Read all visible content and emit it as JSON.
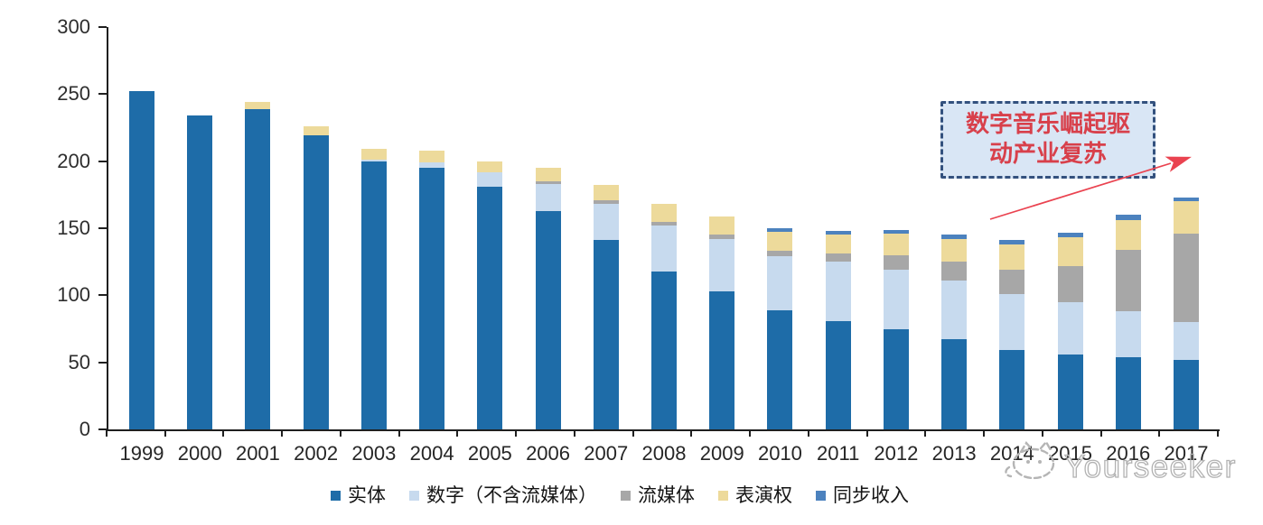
{
  "chart_data": {
    "type": "bar",
    "subtype": "stacked-vertical",
    "title": "",
    "xlabel": "",
    "ylabel": "",
    "ylim": [
      0,
      300
    ],
    "yticks": [
      0,
      50,
      100,
      150,
      200,
      250,
      300
    ],
    "grid": false,
    "legend_position": "bottom",
    "categories": [
      "1999",
      "2000",
      "2001",
      "2002",
      "2003",
      "2004",
      "2005",
      "2006",
      "2007",
      "2008",
      "2009",
      "2010",
      "2011",
      "2012",
      "2013",
      "2014",
      "2015",
      "2016",
      "2017"
    ],
    "series": [
      {
        "key": "physical",
        "name": "实体",
        "color": "#1e6ca8",
        "values": [
          252,
          234,
          239,
          219,
          200,
          195,
          181,
          163,
          141,
          118,
          103,
          89,
          81,
          75,
          67,
          59,
          56,
          54,
          52
        ]
      },
      {
        "key": "digital-excl-streaming",
        "name": "数字（不含流媒体）",
        "color": "#c7daee",
        "values": [
          0,
          0,
          0,
          0,
          1,
          4,
          11,
          20,
          27,
          34,
          39,
          40,
          44,
          44,
          44,
          42,
          39,
          34,
          28
        ]
      },
      {
        "key": "streaming",
        "name": "流媒体",
        "color": "#a7a7a7",
        "values": [
          0,
          0,
          0,
          0,
          0,
          0,
          0,
          2,
          3,
          3,
          3,
          4,
          6,
          11,
          14,
          18,
          27,
          46,
          66
        ]
      },
      {
        "key": "performance-rights",
        "name": "表演权",
        "color": "#edda9b",
        "values": [
          0,
          0,
          5,
          7,
          8,
          9,
          8,
          10,
          11,
          13,
          14,
          14,
          14,
          16,
          17,
          19,
          21,
          22,
          24
        ]
      },
      {
        "key": "sync-revenue",
        "name": "同步收入",
        "color": "#4c82be",
        "values": [
          0,
          0,
          0,
          0,
          0,
          0,
          0,
          0,
          0,
          0,
          0,
          3,
          3,
          3,
          3,
          3,
          4,
          4,
          3
        ]
      }
    ],
    "axis_color": "#1f1f1f"
  },
  "annotation": {
    "line1": "数字音乐崛起驱",
    "line2": "动产业复苏",
    "text_color": "#d8404b",
    "border_color": "#33517e",
    "fill_color": "#d9e6f5",
    "arrow_color": "#ea4350"
  },
  "watermark": {
    "text": "Yourseeker",
    "logo": "cat-logo",
    "color": "#b2b2b2"
  }
}
